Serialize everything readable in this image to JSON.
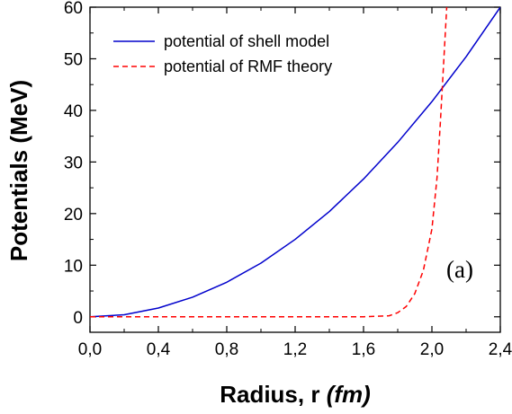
{
  "chart_data": {
    "type": "line",
    "xlabel": "Radius, r ",
    "xlabel_unit": "(fm)",
    "ylabel": "Potentials (MeV)",
    "xlim": [
      0.0,
      2.4
    ],
    "ylim": [
      -3,
      60
    ],
    "xticks": [
      0.0,
      0.4,
      0.8,
      1.2,
      1.6,
      2.0,
      2.4
    ],
    "xtick_labels": [
      "0,0",
      "0,4",
      "0,8",
      "1,2",
      "1,6",
      "2,0",
      "2,4"
    ],
    "yticks": [
      0,
      10,
      20,
      30,
      40,
      50,
      60
    ],
    "ytick_labels": [
      "0",
      "10",
      "20",
      "30",
      "40",
      "50",
      "60"
    ],
    "grid": false,
    "legend_position": "top-left",
    "annotation": "(a)",
    "series": [
      {
        "name": "potential of shell model",
        "style": "solid",
        "color": "#0000cc",
        "x": [
          0.0,
          0.2,
          0.4,
          0.6,
          0.8,
          1.0,
          1.2,
          1.4,
          1.6,
          1.8,
          2.0,
          2.2,
          2.4
        ],
        "y": [
          0.0,
          0.4,
          1.7,
          3.8,
          6.7,
          10.4,
          15.0,
          20.4,
          26.7,
          33.8,
          41.7,
          50.4,
          60.0
        ]
      },
      {
        "name": "potential of RMF theory",
        "style": "dashed",
        "color": "#ff0000",
        "x": [
          0.0,
          0.4,
          0.8,
          1.2,
          1.6,
          1.75,
          1.8,
          1.85,
          1.9,
          1.95,
          2.0,
          2.03,
          2.05,
          2.07,
          2.09
        ],
        "y": [
          0.0,
          0.0,
          0.0,
          0.0,
          0.0,
          0.2,
          0.8,
          2.0,
          4.5,
          9.0,
          17.0,
          27.0,
          38.0,
          50.0,
          62.0
        ]
      }
    ]
  }
}
